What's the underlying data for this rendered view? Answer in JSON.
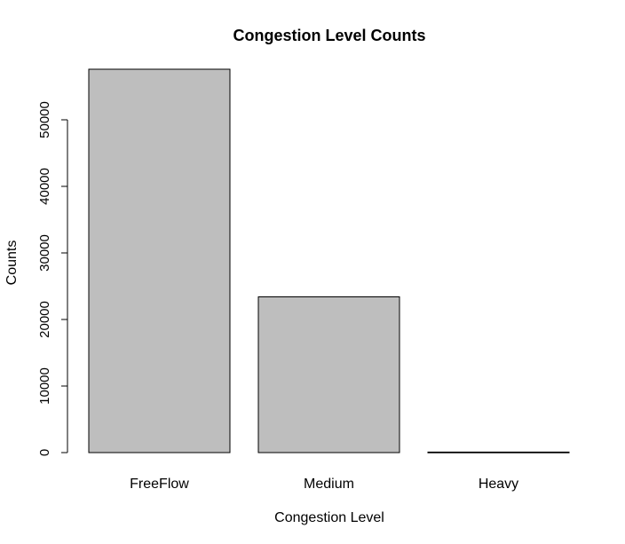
{
  "chart_data": {
    "type": "bar",
    "title": "Congestion Level Counts",
    "xlabel": "Congestion Level",
    "ylabel": "Counts",
    "categories": [
      "FreeFlow",
      "Medium",
      "Heavy"
    ],
    "values": [
      57600,
      23400,
      80
    ],
    "ylim": [
      0,
      57600
    ],
    "yticks": [
      0,
      10000,
      20000,
      30000,
      40000,
      50000
    ],
    "bar_color": "#bebebe",
    "grid": false,
    "legend": "none"
  }
}
